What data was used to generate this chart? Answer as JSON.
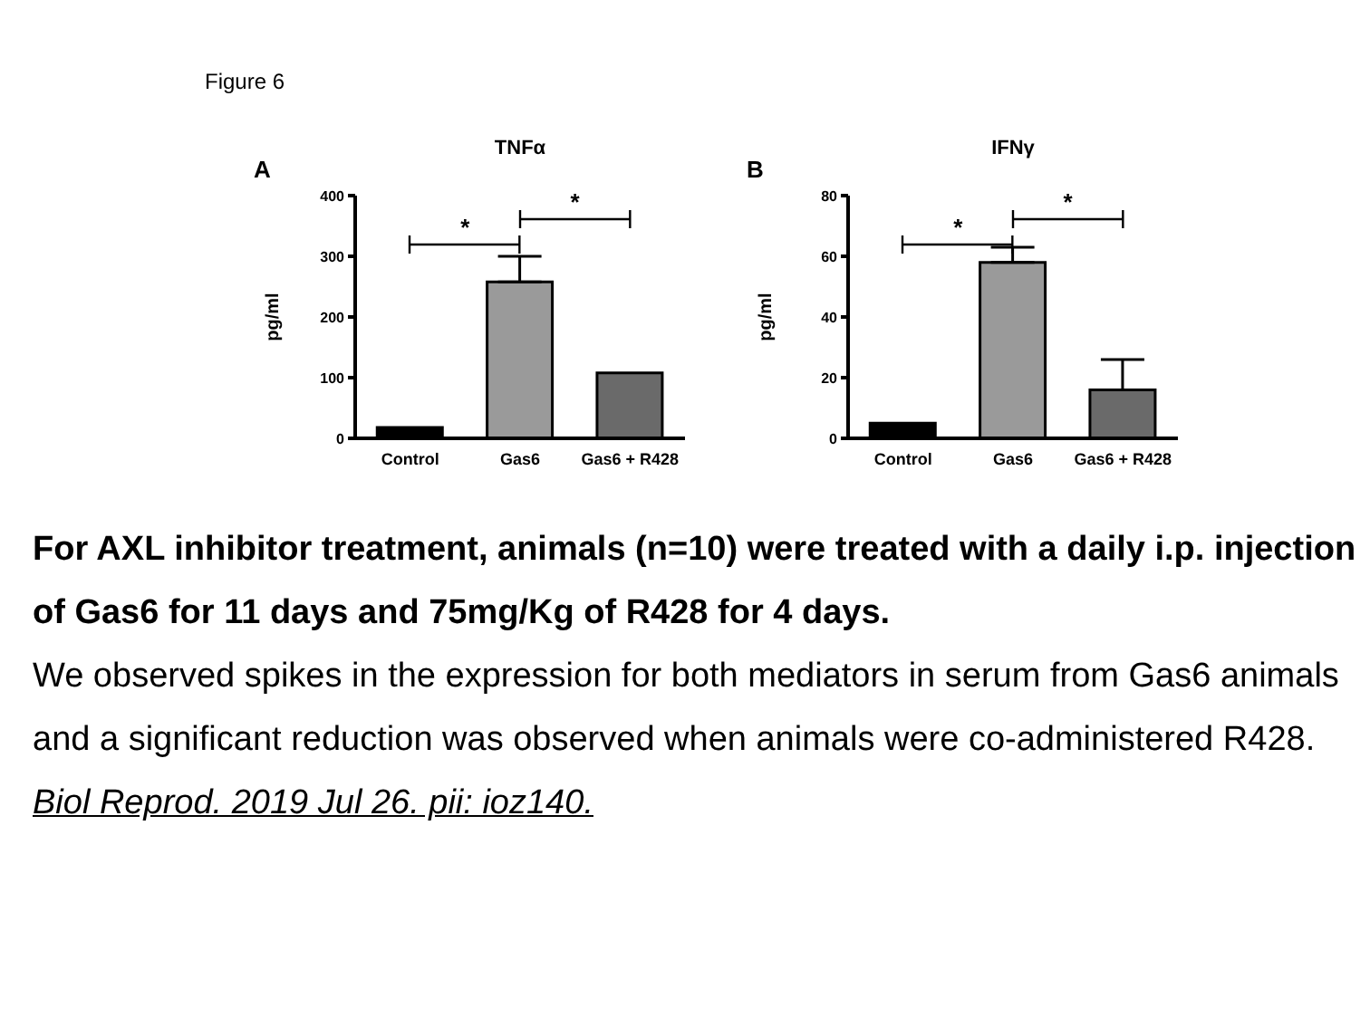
{
  "chart_data": [
    {
      "type": "bar",
      "title": "TNFα",
      "ylabel": "pg/ml",
      "categories": [
        "Control",
        "Gas6",
        "Gas6 + R428"
      ],
      "values": [
        18,
        258,
        108
      ],
      "errors": [
        null,
        [
          258,
          300
        ],
        null
      ],
      "colors": [
        "#000000",
        "#9a9a9a",
        "#6a6a6a"
      ],
      "ylim": [
        0,
        400
      ],
      "yticks": [
        0,
        100,
        200,
        300,
        400
      ],
      "grid": false,
      "legend": false,
      "annotations": [
        "Figure 6",
        "A",
        "*",
        "*"
      ]
    },
    {
      "type": "bar",
      "title": "IFNγ",
      "ylabel": "pg/ml",
      "categories": [
        "Control",
        "Gas6",
        "Gas6 + R428"
      ],
      "values": [
        5,
        58,
        16
      ],
      "errors": [
        null,
        [
          58,
          63
        ],
        [
          16,
          26
        ]
      ],
      "colors": [
        "#000000",
        "#9a9a9a",
        "#6a6a6a"
      ],
      "ylim": [
        0,
        80
      ],
      "yticks": [
        0,
        20,
        40,
        60,
        80
      ],
      "grid": false,
      "legend": false,
      "annotations": [
        "B",
        "*",
        "*"
      ]
    },
    {
      "type": "other",
      "title": "For AXL inhibitor treatment, animals (n=10) were treated with a daily i.p. injection of Gas6 for 11 days and 75mg/Kg of R428 for 4 days.",
      "annotations": [
        "We observed spikes in the expression for both mediators in serum from Gas6 animals and a significant reduction was observed when animals were co-administered R428.",
        "Biol Reprod. 2019 Jul 26. pii: ioz140."
      ]
    }
  ]
}
